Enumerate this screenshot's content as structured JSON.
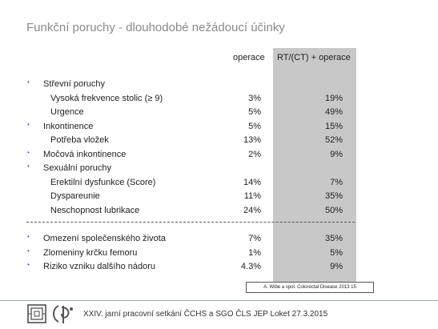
{
  "title": "Funkční poruchy -  dlouhodobé nežádoucí účinky",
  "columns": {
    "operace": "operace",
    "rt": "RT/(CT) + operace"
  },
  "rows": [
    {
      "label": "Střevní poruchy",
      "bullet": true,
      "sub": false,
      "v1": "",
      "v2": ""
    },
    {
      "label": "Vysoká frekvence stolic (≥ 9)",
      "bullet": false,
      "sub": true,
      "v1": "3%",
      "v2": "19%"
    },
    {
      "label": "Urgence",
      "bullet": false,
      "sub": true,
      "v1": "5%",
      "v2": "49%"
    },
    {
      "label": "Inkontinence",
      "bullet": true,
      "sub": false,
      "v1": "5%",
      "v2": "15%"
    },
    {
      "label": "Potřeba vložek",
      "bullet": false,
      "sub": true,
      "v1": "13%",
      "v2": "52%"
    },
    {
      "label": "Močová inkontinence",
      "bullet": true,
      "sub": false,
      "v1": "2%",
      "v2": "9%"
    },
    {
      "label": "Sexuální poruchy",
      "bullet": true,
      "sub": false,
      "v1": "",
      "v2": ""
    },
    {
      "label": "Erektilní dysfunkce (Score)",
      "bullet": false,
      "sub": true,
      "v1": "14%",
      "v2": "7%"
    },
    {
      "label": "Dyspareunie",
      "bullet": false,
      "sub": true,
      "v1": "11%",
      "v2": "35%"
    },
    {
      "label": "Neschopnost lubrikace",
      "bullet": false,
      "sub": true,
      "v1": "24%",
      "v2": "50%"
    }
  ],
  "rows2": [
    {
      "label": "Omezení společenského života",
      "bullet": true,
      "sub": false,
      "v1": "7%",
      "v2": "35%"
    },
    {
      "label": "Zlomeniny krčku femoru",
      "bullet": true,
      "sub": false,
      "v1": "1%",
      "v2": "5%"
    },
    {
      "label": "Riziko vzniku dalšího nádoru",
      "bullet": true,
      "sub": false,
      "v1": "4.3%",
      "v2": "9%"
    }
  ],
  "reference": "A. Wibe a spol. Colorectal Disease 2013 15",
  "footer": "XXIV. jarní pracovní setkání  ČCHS a SGO ČLS JEP Loket 27.3.2015",
  "bullet_char": "•",
  "colors": {
    "shade": "#c8c8c8",
    "bullet": "#3a6aa8",
    "title": "#8a8a8a"
  }
}
